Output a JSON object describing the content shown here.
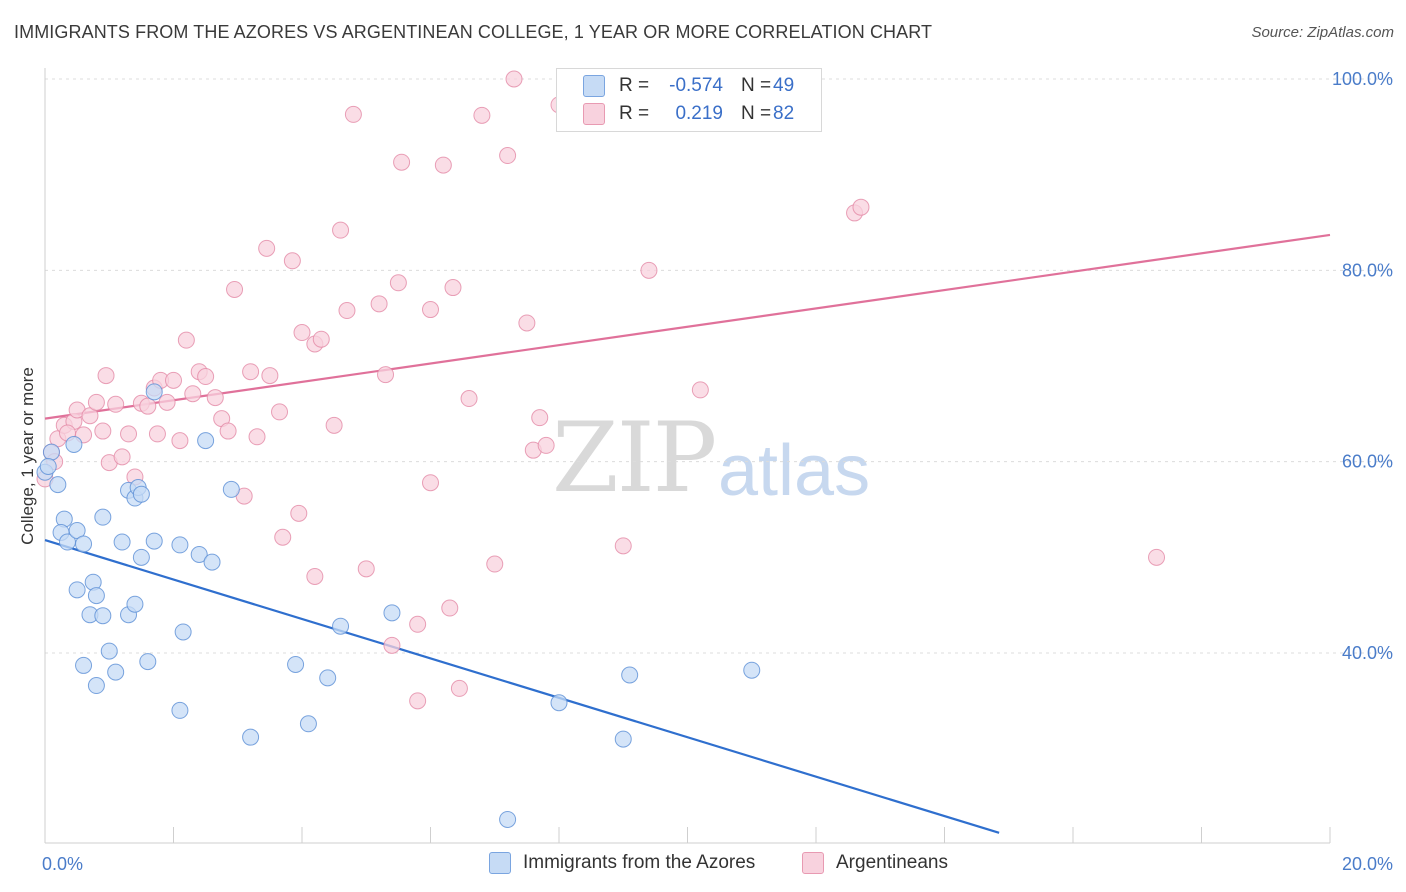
{
  "title": "IMMIGRANTS FROM THE AZORES VS ARGENTINEAN COLLEGE, 1 YEAR OR MORE CORRELATION CHART",
  "source": "Source: ZipAtlas.com",
  "watermark": {
    "zip": "ZIP",
    "atlas": "atlas"
  },
  "legend": {
    "rows": [
      {
        "r_label": "R =",
        "r_value": "-0.574",
        "n_label": "N =",
        "n_value": "49",
        "color": "#aac8f0"
      },
      {
        "r_label": "R =",
        "r_value": "0.219",
        "n_label": "N =",
        "n_value": "82",
        "color": "#f6b8cb"
      }
    ]
  },
  "bottom_legend": [
    {
      "label": "Immigrants from the Azores",
      "color": "#aac8f0"
    },
    {
      "label": "Argentineans",
      "color": "#f6b8cb"
    }
  ],
  "chart_data": {
    "type": "scatter",
    "title": "IMMIGRANTS FROM THE AZORES VS ARGENTINEAN COLLEGE, 1 YEAR OR MORE CORRELATION CHART",
    "xlabel": "",
    "ylabel": "College, 1 year or more",
    "xlim": [
      0,
      20
    ],
    "ylim": [
      20,
      102
    ],
    "x_tick_labels": [
      "0.0%",
      "20.0%"
    ],
    "y_ticks": [
      40,
      60,
      80,
      100
    ],
    "y_tick_labels": [
      "40.0%",
      "60.0%",
      "80.0%",
      "100.0%"
    ],
    "grid": true,
    "series": [
      {
        "name": "Immigrants from the Azores",
        "color": "#5b8fd6",
        "fill": "#c6dbf5",
        "trend": {
          "x": [
            0,
            14.85
          ],
          "y": [
            51.8,
            21.2
          ],
          "color": "#2f6fce"
        },
        "points": [
          [
            0.0,
            58.9
          ],
          [
            0.1,
            61.0
          ],
          [
            0.2,
            57.6
          ],
          [
            0.45,
            61.8
          ],
          [
            0.3,
            54.0
          ],
          [
            0.25,
            52.6
          ],
          [
            0.35,
            51.6
          ],
          [
            0.5,
            52.8
          ],
          [
            0.6,
            51.4
          ],
          [
            0.9,
            54.2
          ],
          [
            0.5,
            46.6
          ],
          [
            0.75,
            47.4
          ],
          [
            0.8,
            46.0
          ],
          [
            0.7,
            44.0
          ],
          [
            0.9,
            43.9
          ],
          [
            0.6,
            38.7
          ],
          [
            1.0,
            40.2
          ],
          [
            1.1,
            38.0
          ],
          [
            0.8,
            36.6
          ],
          [
            1.3,
            44.0
          ],
          [
            1.4,
            45.1
          ],
          [
            1.2,
            51.6
          ],
          [
            1.5,
            50.0
          ],
          [
            1.7,
            51.7
          ],
          [
            1.3,
            57.0
          ],
          [
            1.4,
            56.2
          ],
          [
            1.45,
            57.3
          ],
          [
            1.5,
            56.6
          ],
          [
            1.6,
            39.1
          ],
          [
            2.1,
            51.3
          ],
          [
            2.15,
            42.2
          ],
          [
            2.1,
            34.0
          ],
          [
            2.4,
            50.3
          ],
          [
            2.6,
            49.5
          ],
          [
            2.5,
            62.2
          ],
          [
            2.9,
            57.1
          ],
          [
            1.7,
            67.3
          ],
          [
            3.2,
            31.2
          ],
          [
            3.9,
            38.8
          ],
          [
            4.1,
            32.6
          ],
          [
            4.4,
            37.4
          ],
          [
            4.6,
            42.8
          ],
          [
            5.4,
            44.2
          ],
          [
            7.2,
            22.6
          ],
          [
            8.0,
            34.8
          ],
          [
            9.1,
            37.7
          ],
          [
            9.0,
            31.0
          ],
          [
            11.0,
            38.2
          ],
          [
            0.05,
            59.5
          ]
        ]
      },
      {
        "name": "Argentineans",
        "color": "#e48aa6",
        "fill": "#f8d2de",
        "trend": {
          "x": [
            0,
            20
          ],
          "y": [
            64.5,
            83.7
          ],
          "color": "#e0719a"
        },
        "points": [
          [
            0.0,
            58.2
          ],
          [
            0.1,
            61.0
          ],
          [
            0.2,
            62.4
          ],
          [
            0.3,
            63.8
          ],
          [
            0.45,
            64.2
          ],
          [
            0.5,
            65.4
          ],
          [
            0.6,
            62.8
          ],
          [
            0.7,
            64.8
          ],
          [
            0.8,
            66.2
          ],
          [
            0.9,
            63.2
          ],
          [
            0.95,
            69.0
          ],
          [
            1.0,
            59.9
          ],
          [
            1.1,
            66.0
          ],
          [
            1.2,
            60.5
          ],
          [
            1.3,
            62.9
          ],
          [
            1.4,
            58.4
          ],
          [
            1.5,
            66.1
          ],
          [
            1.6,
            65.8
          ],
          [
            1.7,
            67.7
          ],
          [
            1.75,
            62.9
          ],
          [
            1.8,
            68.5
          ],
          [
            1.9,
            66.2
          ],
          [
            2.0,
            68.5
          ],
          [
            2.1,
            62.2
          ],
          [
            2.2,
            72.7
          ],
          [
            2.3,
            67.1
          ],
          [
            2.4,
            69.4
          ],
          [
            2.5,
            68.9
          ],
          [
            2.65,
            66.7
          ],
          [
            2.75,
            64.5
          ],
          [
            2.85,
            63.2
          ],
          [
            2.95,
            78.0
          ],
          [
            3.1,
            56.4
          ],
          [
            3.2,
            69.4
          ],
          [
            3.3,
            62.6
          ],
          [
            3.45,
            82.3
          ],
          [
            3.5,
            69.0
          ],
          [
            3.65,
            65.2
          ],
          [
            3.7,
            52.1
          ],
          [
            3.85,
            81.0
          ],
          [
            3.95,
            54.6
          ],
          [
            4.0,
            73.5
          ],
          [
            4.2,
            72.3
          ],
          [
            4.3,
            72.8
          ],
          [
            4.2,
            48.0
          ],
          [
            4.5,
            63.8
          ],
          [
            4.6,
            84.2
          ],
          [
            4.7,
            75.8
          ],
          [
            4.8,
            96.3
          ],
          [
            5.0,
            48.8
          ],
          [
            5.2,
            76.5
          ],
          [
            5.3,
            69.1
          ],
          [
            5.4,
            40.8
          ],
          [
            5.5,
            78.7
          ],
          [
            5.55,
            91.3
          ],
          [
            5.8,
            35.0
          ],
          [
            5.8,
            43.0
          ],
          [
            6.0,
            57.8
          ],
          [
            6.0,
            75.9
          ],
          [
            6.2,
            91.0
          ],
          [
            6.3,
            44.7
          ],
          [
            6.35,
            78.2
          ],
          [
            6.45,
            36.3
          ],
          [
            6.6,
            66.6
          ],
          [
            6.8,
            96.2
          ],
          [
            7.0,
            49.3
          ],
          [
            7.2,
            92.0
          ],
          [
            7.3,
            100.0
          ],
          [
            7.5,
            74.5
          ],
          [
            7.6,
            61.2
          ],
          [
            7.7,
            64.6
          ],
          [
            7.8,
            61.7
          ],
          [
            8.0,
            97.3
          ],
          [
            9.0,
            51.2
          ],
          [
            9.4,
            80.0
          ],
          [
            9.5,
            100.0
          ],
          [
            10.2,
            67.5
          ],
          [
            12.6,
            86.0
          ],
          [
            12.7,
            86.6
          ],
          [
            17.3,
            50.0
          ],
          [
            0.15,
            60.0
          ],
          [
            0.35,
            63.0
          ]
        ]
      }
    ]
  }
}
